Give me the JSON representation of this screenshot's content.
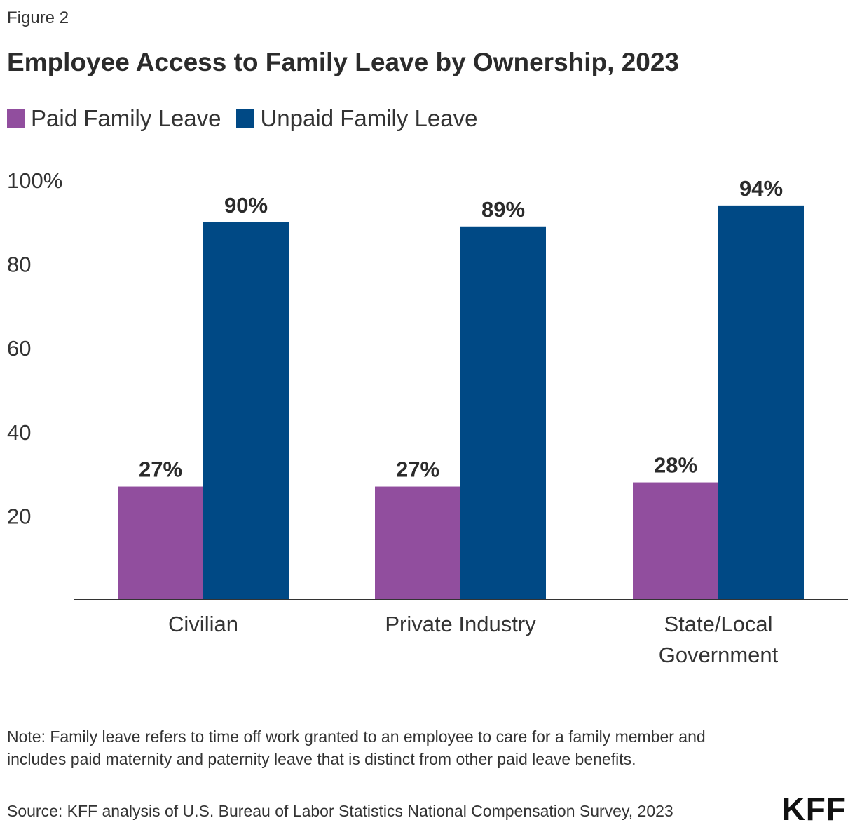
{
  "figure_label": "Figure 2",
  "chart_data": {
    "type": "bar",
    "title": "Employee Access to Family Leave by Ownership, 2023",
    "categories": [
      [
        "Civilian"
      ],
      [
        "Private Industry"
      ],
      [
        "State/Local",
        "Government"
      ]
    ],
    "series": [
      {
        "name": "Paid Family Leave",
        "color": "#914e9e",
        "values": [
          27,
          27,
          28
        ],
        "labels": [
          "27%",
          "27%",
          "28%"
        ]
      },
      {
        "name": "Unpaid Family Leave",
        "color": "#004985",
        "values": [
          90,
          89,
          94
        ],
        "labels": [
          "90%",
          "89%",
          "94%"
        ]
      }
    ],
    "ylim": [
      0,
      100
    ],
    "yticks": [
      20,
      40,
      60,
      80,
      100
    ],
    "ytick_labels": [
      "20",
      "40",
      "60",
      "80",
      "100%"
    ],
    "grid": false,
    "legend_position": "top-left"
  },
  "note": "Note: Family leave refers to time off work granted to an employee to care for a family member and includes paid maternity and paternity leave that is distinct from other paid leave benefits.",
  "source": "Source: KFF analysis of U.S. Bureau of Labor Statistics National Compensation Survey, 2023",
  "logo_text": "KFF"
}
